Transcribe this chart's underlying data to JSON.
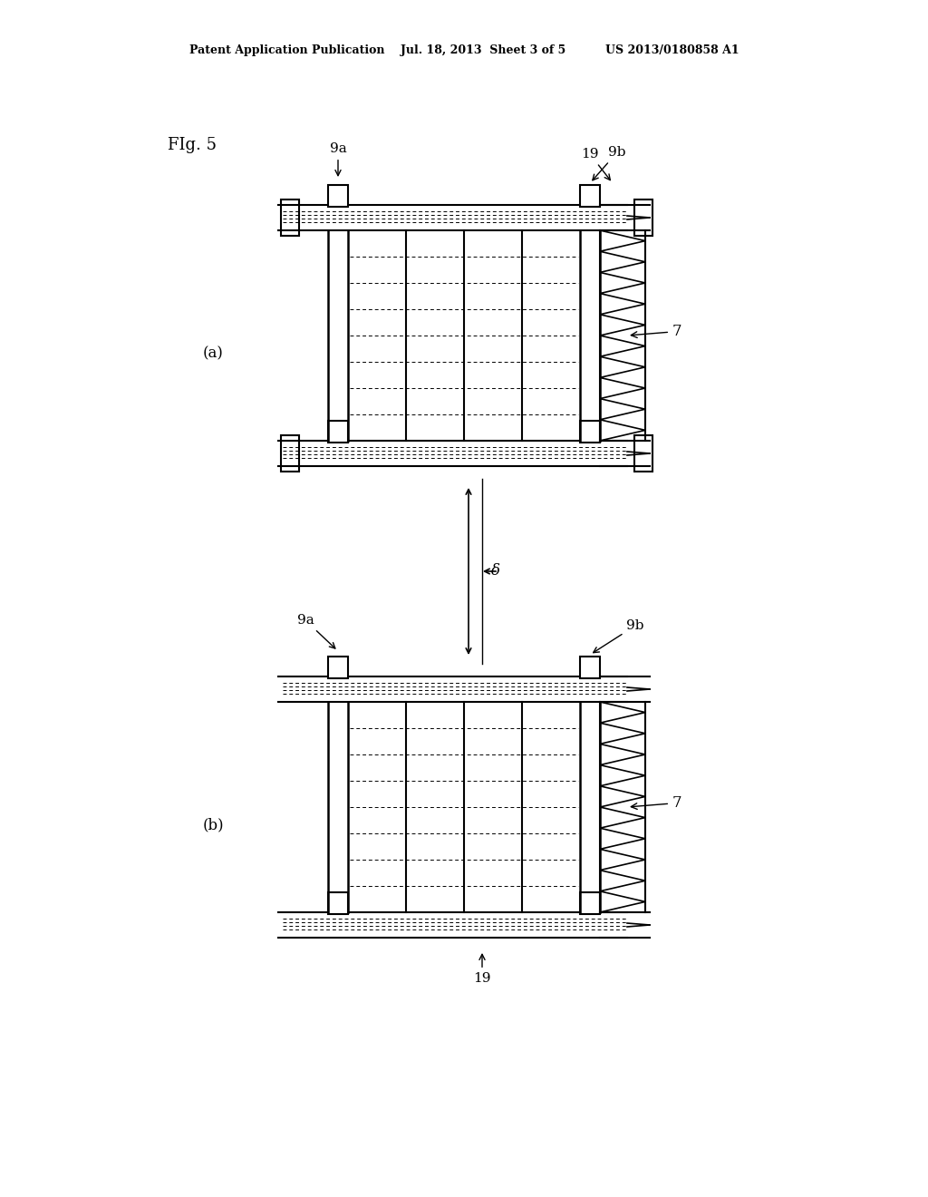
{
  "bg_color": "#ffffff",
  "line_color": "#000000",
  "header_text": "Patent Application Publication    Jul. 18, 2013  Sheet 3 of 5          US 2013/0180858 A1",
  "fig_label": "FIg. 5",
  "label_a": "(a)",
  "label_b": "(b)",
  "label_9a_top": "9a",
  "label_19_top": "19",
  "label_9b_top": "9b",
  "label_7_a": "7",
  "label_9a_bot": "9a",
  "label_delta": "δ",
  "label_9b_bot": "9b",
  "label_7_b": "7",
  "label_19_bot": "19"
}
